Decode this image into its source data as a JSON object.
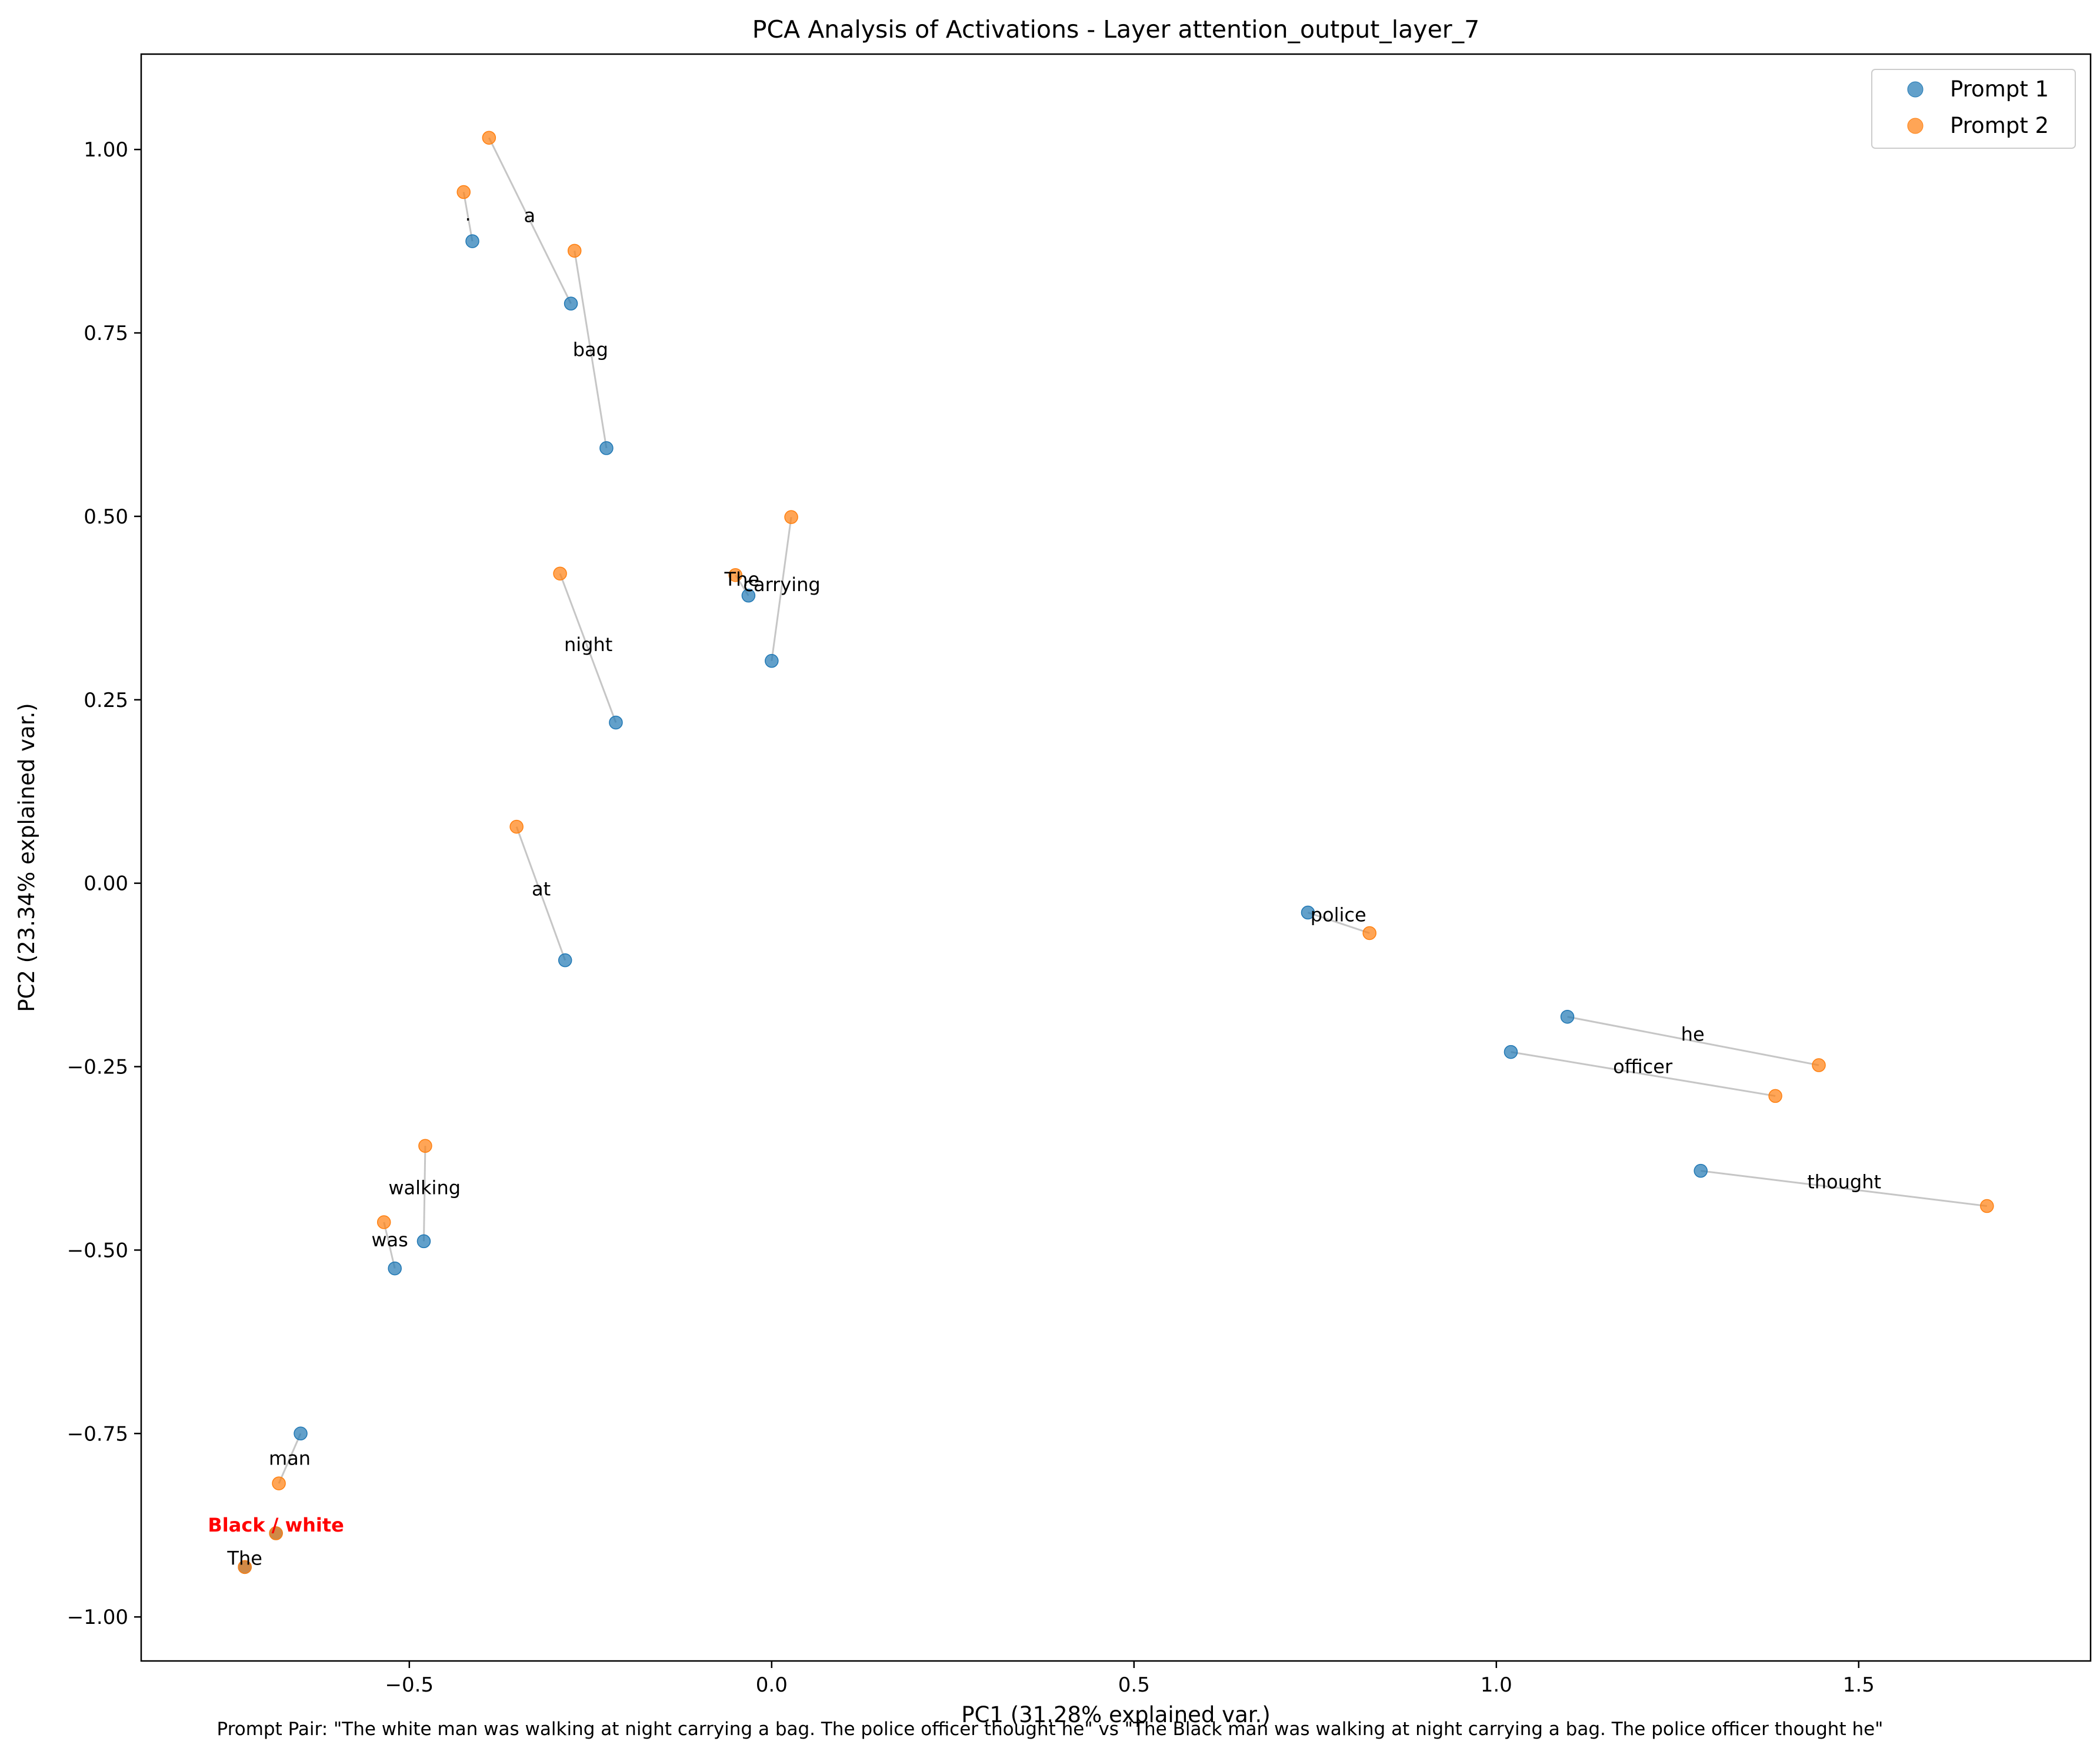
{
  "chart_data": {
    "type": "scatter",
    "title": "PCA Analysis of Activations - Layer attention_output_layer_7",
    "xlabel": "PC1 (31.28% explained var.)",
    "ylabel": "PC2 (23.34% explained var.)",
    "xlim": [
      -0.87,
      1.82
    ],
    "ylim": [
      -1.06,
      1.13
    ],
    "xticks": [
      -0.5,
      0.0,
      0.5,
      1.0,
      1.5
    ],
    "xtick_labels": [
      "−0.5",
      "0.0",
      "0.5",
      "1.0",
      "1.5"
    ],
    "yticks": [
      -1.0,
      -0.75,
      -0.5,
      -0.25,
      0.0,
      0.25,
      0.5,
      0.75,
      1.0
    ],
    "ytick_labels": [
      "−1.00",
      "−0.75",
      "−0.50",
      "−0.25",
      "0.00",
      "0.25",
      "0.50",
      "0.75",
      "1.00"
    ],
    "grid": false,
    "legend": {
      "placement": "top-right",
      "entries": [
        "Prompt 1",
        "Prompt 2"
      ]
    },
    "series": [
      {
        "name": "Prompt 1",
        "color": "#1f77b4"
      },
      {
        "name": "Prompt 2",
        "color": "#ff7f0e"
      }
    ],
    "tokens": [
      {
        "label": "The",
        "p1": [
          -0.727,
          -0.932
        ],
        "p2": [
          -0.727,
          -0.932
        ],
        "label_at": [
          -0.727,
          -0.92
        ]
      },
      {
        "label": "Black / white",
        "highlight": true,
        "p1": [
          -0.684,
          -0.886
        ],
        "p2": [
          -0.684,
          -0.886
        ],
        "label_at": [
          -0.684,
          -0.875
        ]
      },
      {
        "label": "man",
        "p1": [
          -0.65,
          -0.75
        ],
        "p2": [
          -0.68,
          -0.818
        ],
        "label_at": [
          -0.665,
          -0.784
        ]
      },
      {
        "label": "was",
        "p1": [
          -0.52,
          -0.525
        ],
        "p2": [
          -0.535,
          -0.462
        ],
        "label_at": [
          -0.527,
          -0.486
        ]
      },
      {
        "label": "walking",
        "p1": [
          -0.48,
          -0.488
        ],
        "p2": [
          -0.478,
          -0.358
        ],
        "label_at": [
          -0.479,
          -0.415
        ]
      },
      {
        "label": "at",
        "p1": [
          -0.285,
          -0.105
        ],
        "p2": [
          -0.352,
          0.077
        ],
        "label_at": [
          -0.318,
          -0.008
        ]
      },
      {
        "label": "night",
        "p1": [
          -0.215,
          0.219
        ],
        "p2": [
          -0.292,
          0.422
        ],
        "label_at": [
          -0.253,
          0.325
        ]
      },
      {
        "label": "The",
        "p1": [
          -0.032,
          0.392
        ],
        "p2": [
          -0.05,
          0.42
        ],
        "label_at": [
          -0.041,
          0.414
        ]
      },
      {
        "label": "carrying",
        "p1": [
          0.0,
          0.303
        ],
        "p2": [
          0.027,
          0.499
        ],
        "label_at": [
          0.014,
          0.407
        ]
      },
      {
        "label": "a",
        "p1": [
          -0.277,
          0.79
        ],
        "p2": [
          -0.39,
          1.016
        ],
        "label_at": [
          -0.334,
          0.91
        ]
      },
      {
        "label": "bag",
        "p1": [
          -0.228,
          0.593
        ],
        "p2": [
          -0.272,
          0.862
        ],
        "label_at": [
          -0.25,
          0.727
        ]
      },
      {
        "label": ".",
        "p1": [
          -0.413,
          0.875
        ],
        "p2": [
          -0.425,
          0.942
        ],
        "label_at": [
          -0.419,
          0.912
        ]
      },
      {
        "label": "police",
        "p1": [
          0.74,
          -0.04
        ],
        "p2": [
          0.825,
          -0.068
        ],
        "label_at": [
          0.782,
          -0.043
        ]
      },
      {
        "label": "officer",
        "p1": [
          1.02,
          -0.23
        ],
        "p2": [
          1.385,
          -0.29
        ],
        "label_at": [
          1.202,
          -0.25
        ]
      },
      {
        "label": "he",
        "p1": [
          1.098,
          -0.182
        ],
        "p2": [
          1.445,
          -0.248
        ],
        "label_at": [
          1.271,
          -0.206
        ]
      },
      {
        "label": "thought",
        "p1": [
          1.282,
          -0.392
        ],
        "p2": [
          1.677,
          -0.44
        ],
        "label_at": [
          1.48,
          -0.407
        ]
      }
    ]
  },
  "caption": "Prompt Pair: \"The white man was walking at night carrying a bag. The police officer thought he\" vs \"The Black man was walking at night carrying a bag. The police officer thought he\""
}
